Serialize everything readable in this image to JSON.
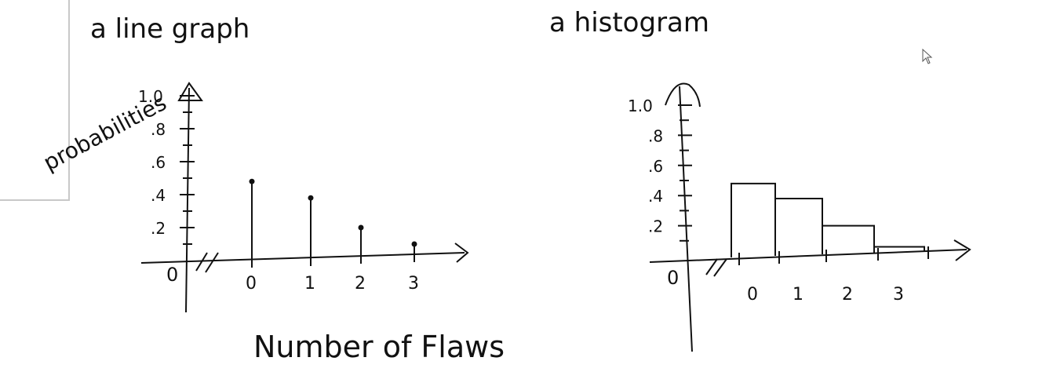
{
  "stroke_color": "#111111",
  "frame_color": "#c8c8c8",
  "cursor_icon": "mouse-pointer-icon",
  "line_graph": {
    "title": "a line graph",
    "ylabel": "probabilities",
    "xlabel": "Number of Flaws",
    "origin_label": "0",
    "y_ticks": [
      ".2",
      ".4",
      ".6",
      ".8",
      "1.0"
    ],
    "x_ticks": [
      "0",
      "1",
      "2",
      "3"
    ]
  },
  "histogram": {
    "title": "a histogram",
    "origin_label": "0",
    "y_ticks": [
      ".2",
      ".4",
      ".6",
      ".8",
      "1.0"
    ],
    "x_ticks": [
      "0",
      "1",
      "2",
      "3"
    ]
  },
  "chart_data": [
    {
      "type": "line",
      "title": "a line graph",
      "xlabel": "Number of Flaws",
      "ylabel": "probabilities",
      "categories": [
        "0",
        "1",
        "2",
        "3"
      ],
      "x": [
        0,
        1,
        2,
        3
      ],
      "values": [
        0.48,
        0.38,
        0.2,
        0.1
      ],
      "ylim": [
        0,
        1.0
      ],
      "grid": false
    },
    {
      "type": "bar",
      "title": "a histogram",
      "categories": [
        "0",
        "1",
        "2",
        "3"
      ],
      "values": [
        0.48,
        0.38,
        0.2,
        0.06
      ],
      "ylim": [
        0,
        1.0
      ],
      "grid": false
    }
  ]
}
